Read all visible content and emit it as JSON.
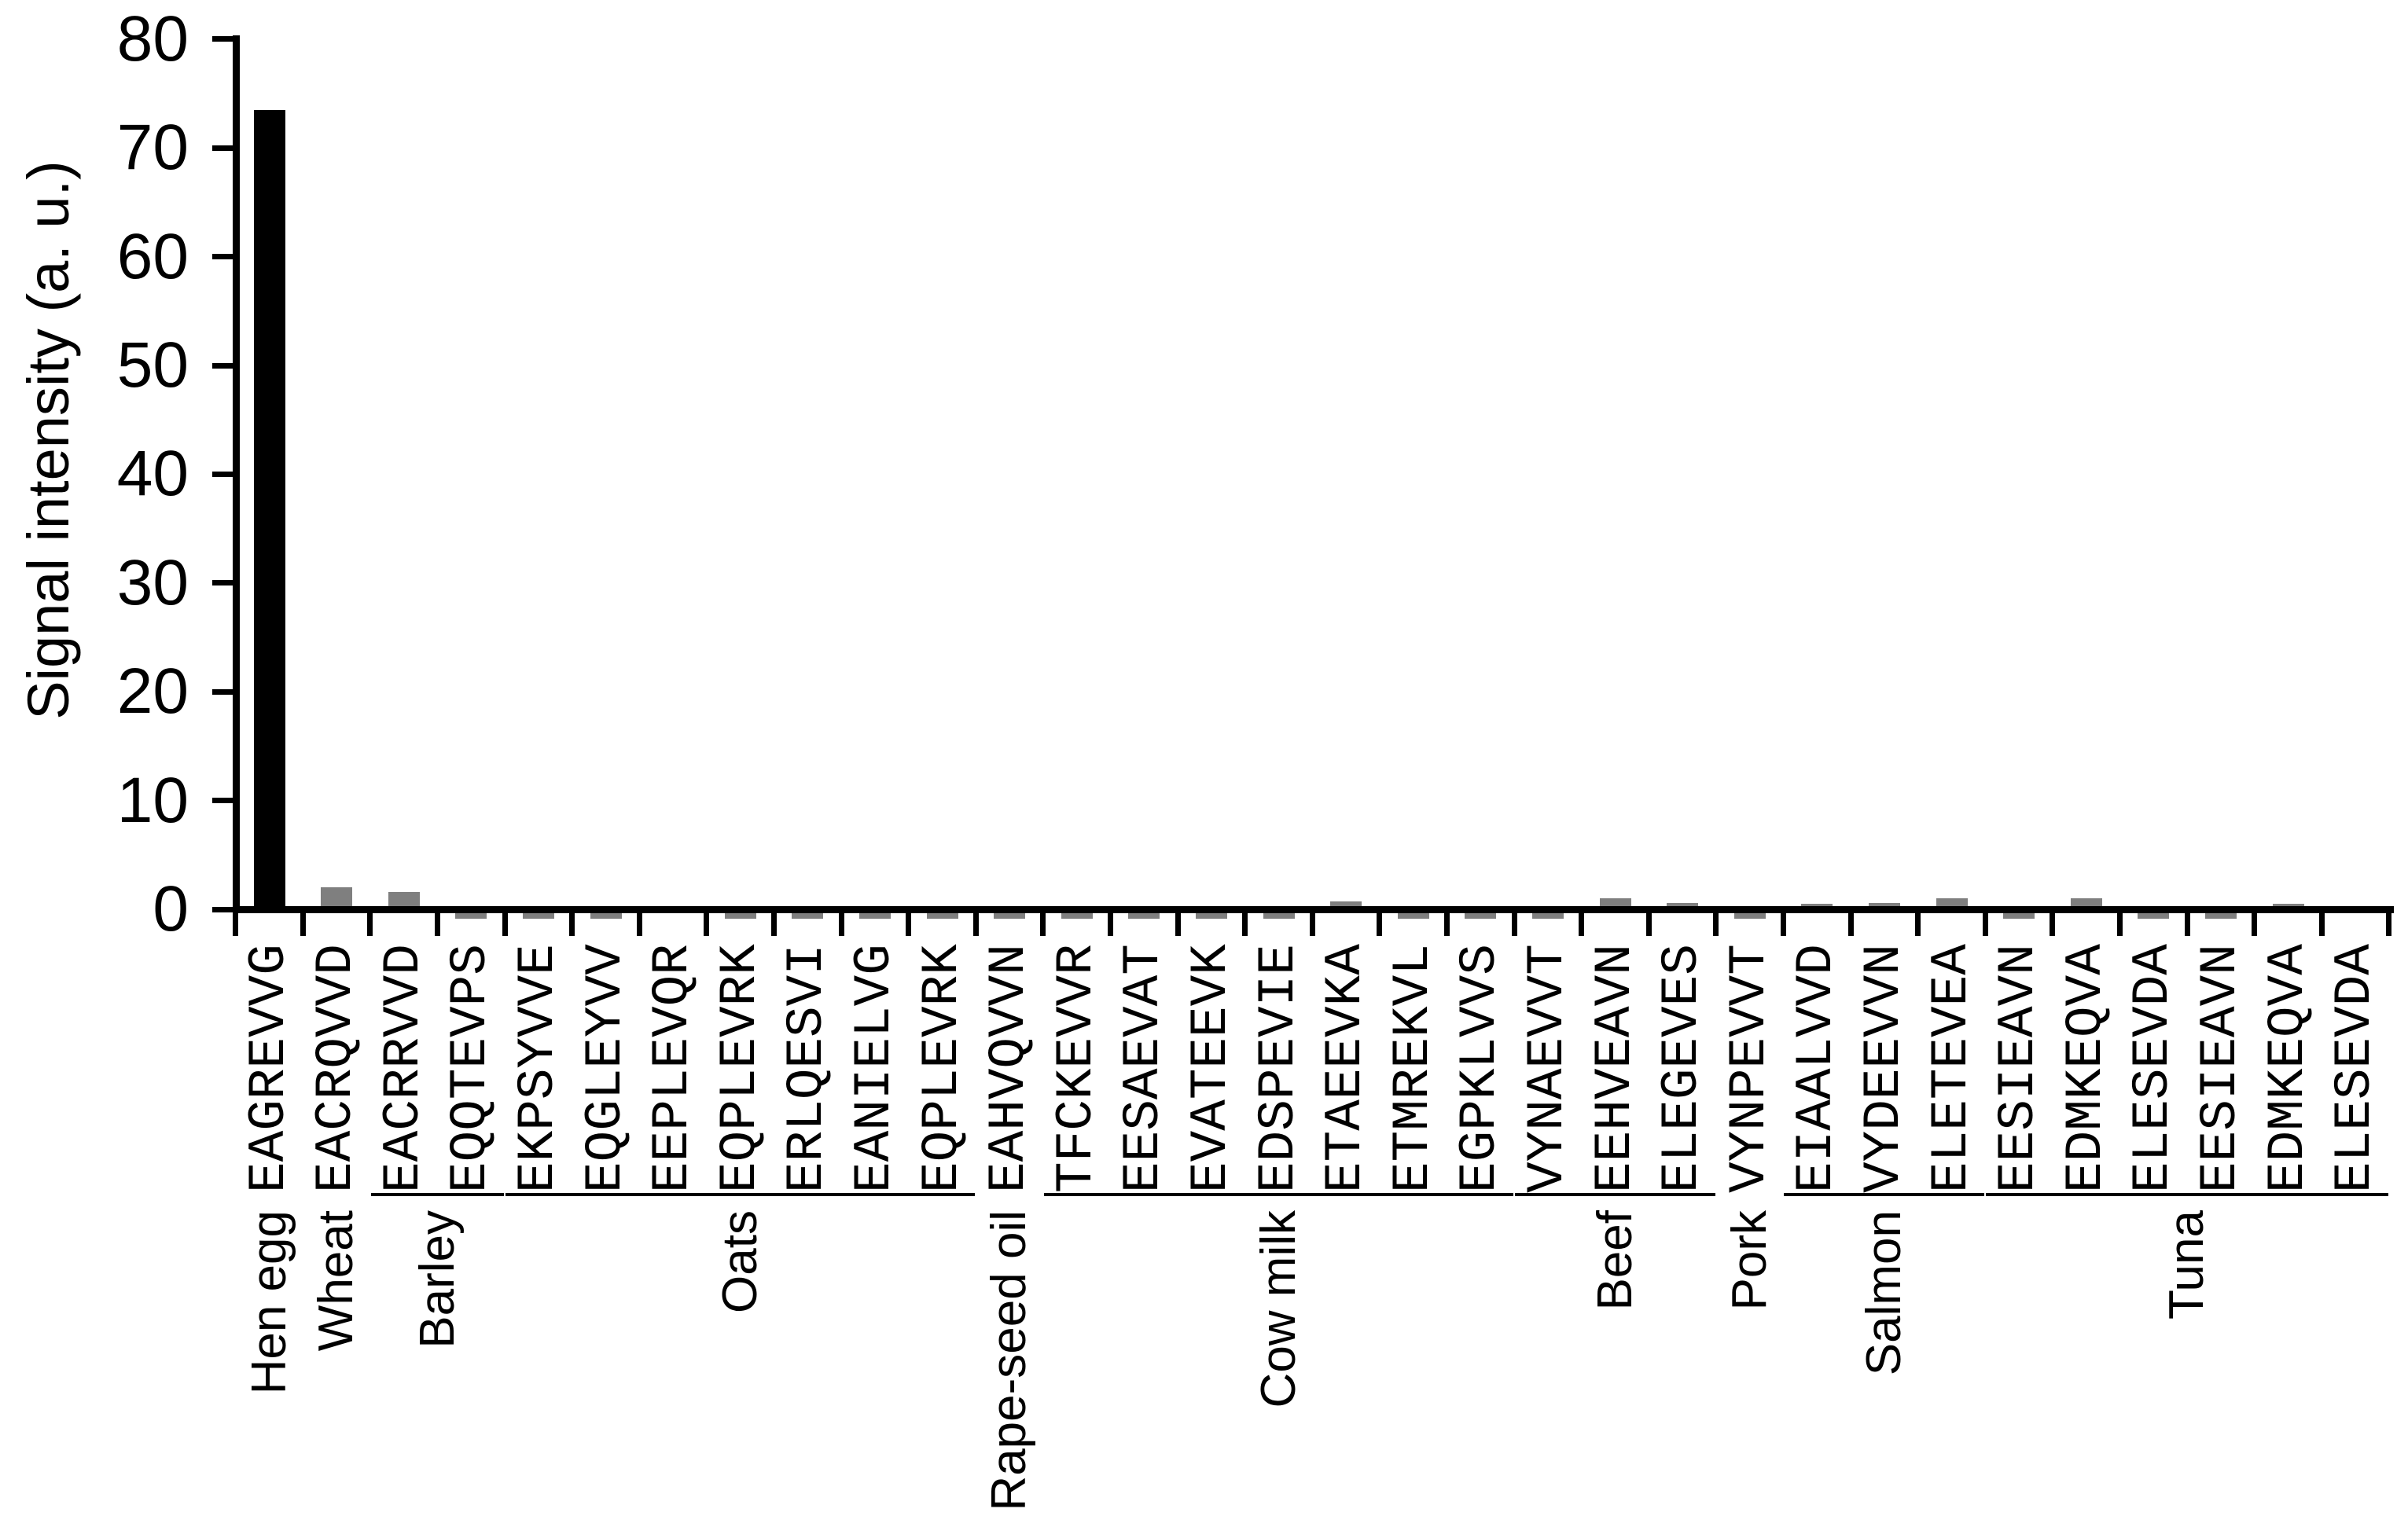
{
  "chart_data": {
    "type": "bar",
    "title": "",
    "xlabel": "",
    "ylabel": "Signal intensity (a. u.)",
    "ylim": [
      0,
      80
    ],
    "yticks": [
      0,
      10,
      20,
      30,
      40,
      50,
      60,
      70,
      80
    ],
    "grid": false,
    "legend_position": "none",
    "bar_color_default": "#7f7f7f",
    "highlight_color": "#000000",
    "axis_color": "#000000",
    "groups": [
      {
        "name": "Hen egg",
        "bracket": false,
        "bars": [
          {
            "label": "EAGREVVG",
            "value": 73.5,
            "color": "#000000"
          }
        ]
      },
      {
        "name": "Wheat",
        "bracket": false,
        "bars": [
          {
            "label": "EACRQVVD",
            "value": 2.0
          }
        ]
      },
      {
        "name": "Barley",
        "bracket": true,
        "bars": [
          {
            "label": "EACRRVVD",
            "value": 1.6
          },
          {
            "label": "EQQTEVPS",
            "value": -0.5
          }
        ]
      },
      {
        "name": "Oats",
        "bracket": true,
        "bars": [
          {
            "label": "EKPSYVVE",
            "value": -0.5
          },
          {
            "label": "EQGLEYVV",
            "value": -0.5
          },
          {
            "label": "EEPLEVQR",
            "value": 0.2
          },
          {
            "label": "EQPLEVRK",
            "value": -0.5
          },
          {
            "label": "ERLQESVI",
            "value": -0.5
          },
          {
            "label": "EANIELVG",
            "value": -0.5
          },
          {
            "label": "EQPLEVRK",
            "value": -0.5
          }
        ]
      },
      {
        "name": "Rape-seed oil",
        "bracket": false,
        "bars": [
          {
            "label": "EAHVQVVN",
            "value": -0.5
          }
        ]
      },
      {
        "name": "Cow milk",
        "bracket": true,
        "bars": [
          {
            "label": "TFCKEVVR",
            "value": -0.5
          },
          {
            "label": "EESAEVAT",
            "value": -0.5
          },
          {
            "label": "EVATEEVK",
            "value": -0.5
          },
          {
            "label": "EDSPEVIE",
            "value": -0.5
          },
          {
            "label": "ETAEEVKA",
            "value": 0.7
          },
          {
            "label": "ETMREKVL",
            "value": -0.5
          },
          {
            "label": "EGPKLVVS",
            "value": -0.5
          }
        ]
      },
      {
        "name": "Beef",
        "bracket": true,
        "bars": [
          {
            "label": "VYNAEVVT",
            "value": -0.5
          },
          {
            "label": "EEHVEAVN",
            "value": 1.0
          },
          {
            "label": "ELEGEVES",
            "value": 0.6
          }
        ]
      },
      {
        "name": "Pork",
        "bracket": false,
        "bars": [
          {
            "label": "VYNPEVVT",
            "value": -0.5
          }
        ]
      },
      {
        "name": "Salmon",
        "bracket": true,
        "bars": [
          {
            "label": "EIAALVVD",
            "value": 0.5
          },
          {
            "label": "VYDEEVVN",
            "value": 0.6
          },
          {
            "label": "ELETEVEA",
            "value": 1.0
          }
        ]
      },
      {
        "name": "Tuna",
        "bracket": true,
        "bars": [
          {
            "label": "EESIEAVN",
            "value": -0.5
          },
          {
            "label": "EDMKEQVA",
            "value": 1.0
          },
          {
            "label": "ELESEVDA",
            "value": -0.5
          },
          {
            "label": "EESIEAVN",
            "value": -0.5
          },
          {
            "label": "EDMKEQVA",
            "value": 0.5
          },
          {
            "label": "ELESEVDA",
            "value": 0.2
          }
        ]
      }
    ]
  }
}
